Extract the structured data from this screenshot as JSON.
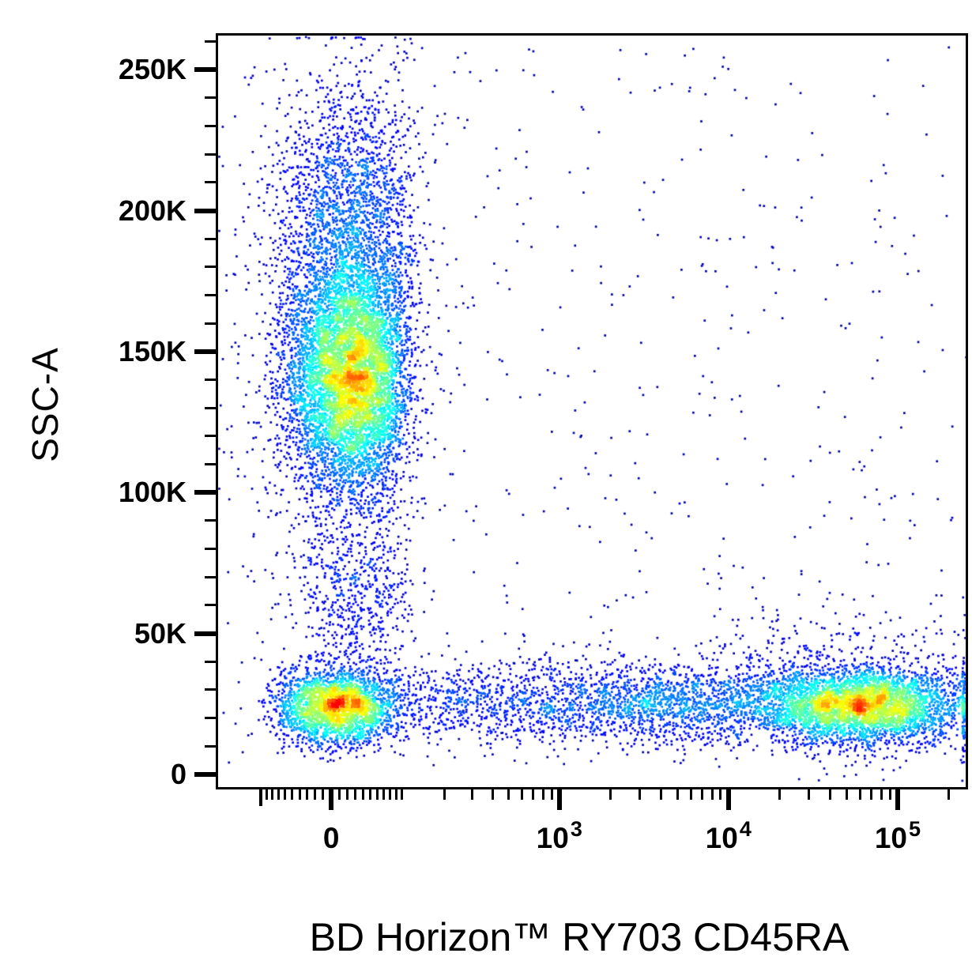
{
  "chart_data": {
    "type": "scatter",
    "variant": "flow-cytometry-pseudocolor-density-plot",
    "title": "",
    "xlabel": "BD Horizon™ RY703 CD45RA",
    "ylabel": "SSC-A",
    "grid": false,
    "legend": false,
    "colors": {
      "background": "#ffffff",
      "axis": "#000000",
      "text": "#000000",
      "density_colormap": "jet",
      "colormap_stops": [
        "#000080",
        "#0000ff",
        "#00bfff",
        "#00ff40",
        "#ffff00",
        "#ff8000",
        "#ff2000"
      ]
    },
    "x_axis": {
      "scale": "asinh",
      "linear_width": 90,
      "min": -200,
      "max": 255000,
      "major_ticks": [
        {
          "value": 0,
          "label": "0"
        },
        {
          "value": 1000,
          "mantissa": "10",
          "exponent": "3"
        },
        {
          "value": 10000,
          "mantissa": "10",
          "exponent": "4"
        },
        {
          "value": 100000,
          "mantissa": "10",
          "exponent": "5"
        }
      ],
      "medium_ticks": [
        -100
      ],
      "minor_ticks": [
        -90,
        -80,
        -70,
        -60,
        -50,
        -40,
        -30,
        -20,
        -10,
        10,
        20,
        30,
        40,
        50,
        60,
        70,
        80,
        90,
        100,
        200,
        300,
        400,
        500,
        600,
        700,
        800,
        900,
        2000,
        3000,
        4000,
        5000,
        6000,
        7000,
        8000,
        9000,
        20000,
        30000,
        40000,
        50000,
        60000,
        70000,
        80000,
        90000,
        200000
      ]
    },
    "y_axis": {
      "scale": "linear",
      "min": -4800,
      "max": 262400,
      "minor_step": 10000,
      "minor_max": 260000,
      "major_ticks": [
        {
          "value": 0,
          "label": "0"
        },
        {
          "value": 50000,
          "label": "50K"
        },
        {
          "value": 100000,
          "label": "100K"
        },
        {
          "value": 150000,
          "label": "150K"
        },
        {
          "value": 200000,
          "label": "200K"
        },
        {
          "value": 250000,
          "label": "250K"
        }
      ]
    },
    "populations": [
      {
        "name": "ssc-high-granulocytes-core",
        "count": 6500,
        "x": {
          "dist": "normal",
          "mean": 25,
          "sd": 40
        },
        "y": {
          "dist": "normal",
          "mean": 141000,
          "sd": 21000
        }
      },
      {
        "name": "ssc-high-granulocytes-upper",
        "count": 2100,
        "x": {
          "dist": "normal",
          "mean": 25,
          "sd": 48
        },
        "y": {
          "dist": "normal",
          "mean": 195000,
          "sd": 26000
        }
      },
      {
        "name": "ssc-high-granulocytes-halo",
        "count": 600,
        "x": {
          "dist": "normal",
          "mean": 25,
          "sd": 85
        },
        "y": {
          "dist": "normal",
          "mean": 150000,
          "sd": 52000
        }
      },
      {
        "name": "monocyte-neck",
        "count": 600,
        "x": {
          "dist": "normal",
          "mean": 28,
          "sd": 42
        },
        "y": {
          "dist": "normal",
          "mean": 62000,
          "sd": 17000
        }
      },
      {
        "name": "cd45ra-negative-lymphocytes",
        "count": 2500,
        "x": {
          "dist": "normal",
          "mean": 3,
          "sd": 38
        },
        "y": {
          "dist": "normal",
          "mean": 24000,
          "sd": 6600
        }
      },
      {
        "name": "cd45ra-dim-smear",
        "count": 850,
        "x": {
          "dist": "lognormal10",
          "mean_log10": 2.55,
          "sd_log10": 0.45
        },
        "y": {
          "dist": "normal",
          "mean": 25500,
          "sd": 7500
        }
      },
      {
        "name": "cd45ra-mid-smear",
        "count": 1500,
        "x": {
          "dist": "lognormal10",
          "mean_log10": 3.65,
          "sd_log10": 0.42
        },
        "y": {
          "dist": "normal",
          "mean": 25000,
          "sd": 7200
        }
      },
      {
        "name": "cd45ra-bright-lymphocytes",
        "count": 3800,
        "x": {
          "dist": "lognormal10",
          "mean_log10": 4.78,
          "sd_log10": 0.32
        },
        "y": {
          "dist": "normal",
          "mean": 24500,
          "sd": 6600
        }
      },
      {
        "name": "cd45ra-bright-halo",
        "count": 550,
        "x": {
          "dist": "lognormal10",
          "mean_log10": 4.62,
          "sd_log10": 0.45
        },
        "y": {
          "dist": "normal",
          "mean": 31000,
          "sd": 14000
        }
      },
      {
        "name": "background-debris",
        "count": 550,
        "x": {
          "dist": "uniform_frac",
          "min": 0,
          "max": 1
        },
        "y": {
          "dist": "uniform",
          "min": 2000,
          "max": 258000
        }
      }
    ]
  }
}
